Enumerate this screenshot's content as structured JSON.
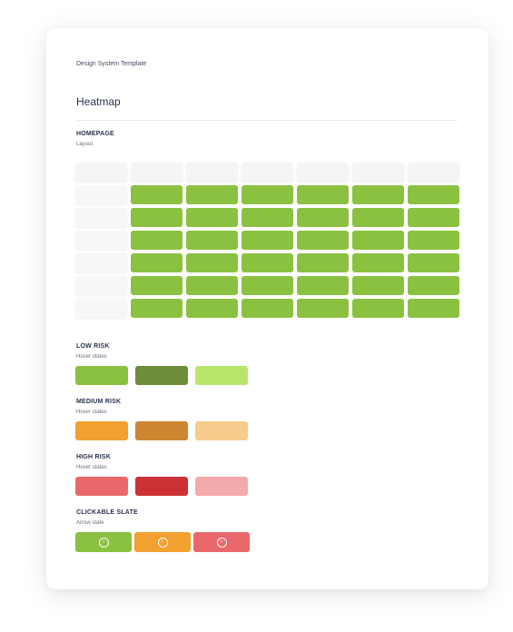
{
  "header": {
    "subtitle": "Design System Template",
    "title": "Heatmap"
  },
  "homepage": {
    "title": "HOMEPAGE",
    "subtitle": "Layout",
    "columns": 6,
    "rows": 6,
    "cell_color": "#8bc140"
  },
  "low_risk": {
    "title": "LOW RISK",
    "subtitle": "Hover states",
    "colors": [
      "#8bc140",
      "#6c8d3b",
      "#b8e66b"
    ]
  },
  "medium_risk": {
    "title": "MEDIUM RISK",
    "subtitle": "Hover states",
    "colors": [
      "#f2a030",
      "#cd8530",
      "#f7cb8c"
    ]
  },
  "high_risk": {
    "title": "HIGH RISK",
    "subtitle": "Hover states",
    "colors": [
      "#e9686b",
      "#cc3135",
      "#f3aaab"
    ]
  },
  "clickable_slate": {
    "title": "CLICKABLE SLATE",
    "subtitle": "Arrow state",
    "buttons": [
      {
        "color": "#8bc140",
        "icon": "arrow-right-circle-icon"
      },
      {
        "color": "#f2a030",
        "icon": "arrow-right-circle-icon"
      },
      {
        "color": "#e9686b",
        "icon": "arrow-right-circle-icon"
      }
    ]
  }
}
